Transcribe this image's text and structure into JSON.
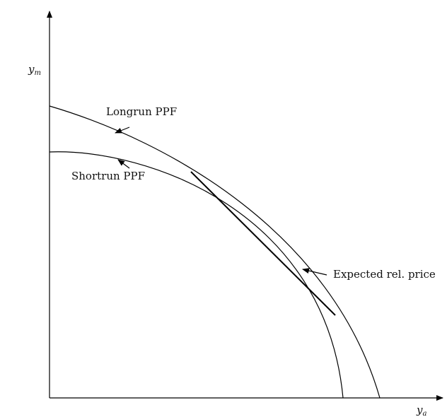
{
  "diagram": {
    "y_axis_label": {
      "main": "y",
      "sub": "m"
    },
    "x_axis_label": {
      "main": "y",
      "sub": "a"
    },
    "longrun_label": "Longrun PPF",
    "shortrun_label": "Shortrun PPF",
    "price_label": "Expected rel. price"
  }
}
